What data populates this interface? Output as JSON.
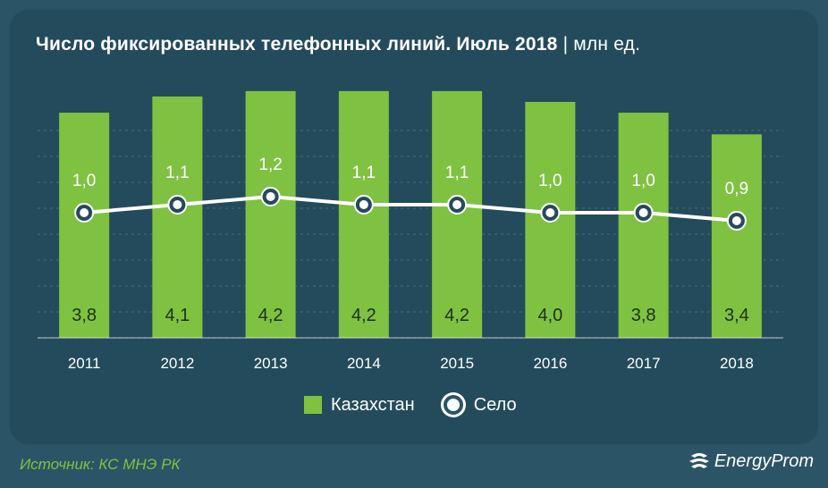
{
  "title": {
    "main": "Число фиксированных телефонных линий. Июль 2018",
    "separator": "|",
    "unit": "млн ед."
  },
  "colors": {
    "background": "#244b5b",
    "bar": "#7fc241",
    "line": "#ffffff",
    "marker_fill": "#ffffff",
    "marker_ring": "#244b5b",
    "source": "#7fc241"
  },
  "chart_data": {
    "type": "bar",
    "categories": [
      "2011",
      "2012",
      "2013",
      "2014",
      "2015",
      "2016",
      "2017",
      "2018"
    ],
    "series": [
      {
        "name": "Казахстан",
        "type": "bar",
        "values": [
          3.8,
          4.1,
          4.2,
          4.2,
          4.2,
          4.0,
          3.8,
          3.4
        ],
        "labels": [
          "3,8",
          "4,1",
          "4,2",
          "4,2",
          "4,2",
          "4,0",
          "3,8",
          "3,4"
        ]
      },
      {
        "name": "Село",
        "type": "line",
        "values": [
          1.0,
          1.1,
          1.2,
          1.1,
          1.1,
          1.0,
          1.0,
          0.9
        ],
        "labels": [
          "1,0",
          "1,1",
          "1,2",
          "1,1",
          "1,1",
          "1,0",
          "1,0",
          "0,9"
        ]
      }
    ],
    "ylim": [
      0,
      4.5
    ],
    "grid": true,
    "legend_position": "bottom-center"
  },
  "legend": {
    "bar_label": "Казахстан",
    "line_label": "Село"
  },
  "footer": {
    "source": "Источник: КС МНЭ РК",
    "brand": "EnergyProm"
  }
}
